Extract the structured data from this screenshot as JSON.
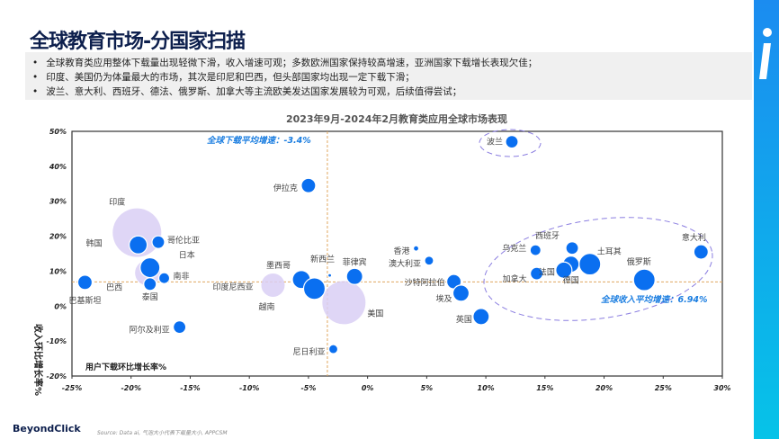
{
  "title": "全球教育市场-分国家扫描",
  "bullets": [
    "全球教育类应用整体下载量出现轻微下滑，收入增速可观；多数欧洲国家保持较高增速，亚洲国家下载增长表现欠佳；",
    "印度、美国仍为体量最大的市场，其次是印尼和巴西，但头部国家均出现一定下载下滑；",
    "波兰、意大利、西班牙、德法、俄罗斯、加拿大等主流欧美发达国家发展较为可观，后续值得尝试；"
  ],
  "brand": "BeyondClick",
  "source": "Source: Data ai, 气泡大小代表下载量大小, APPCSM",
  "colors": {
    "bubble": "#0a6ff0",
    "bubble_light": "#d9cff5",
    "accent": "#1a7de0",
    "refline": "#e0a860",
    "ellipse": "#8a7de0"
  },
  "chart_data": {
    "type": "scatter",
    "title": "2023年9月-2024年2月教育类应用全球市场表现",
    "xlabel": "用户下载环比增长率%",
    "ylabel": "收入环比增长率%",
    "xlim": [
      -25,
      30
    ],
    "ylim": [
      -20,
      50
    ],
    "xticks": [
      "-25%",
      "-20%",
      "-15%",
      "-10%",
      "-5%",
      "0%",
      "5%",
      "10%",
      "15%",
      "20%",
      "25%",
      "30%"
    ],
    "yticks": [
      "50%",
      "40%",
      "30%",
      "20%",
      "10%",
      "0%",
      "-10%",
      "-20%"
    ],
    "grid": false,
    "reference_lines": {
      "x": -3.4,
      "y": 6.94
    },
    "annotations": [
      "全球下载平均增速：-3.4%",
      "全球收入平均增速：6.94%"
    ],
    "points": [
      {
        "name": "印度",
        "x": -19.5,
        "y": 21,
        "size": 27,
        "light": true
      },
      {
        "name": "巴西",
        "x": -18.6,
        "y": 9.5,
        "size": 14,
        "light": true
      },
      {
        "name": "印度尼西亚",
        "x": -8,
        "y": 6,
        "size": 13,
        "light": true
      },
      {
        "name": "美国",
        "x": -2,
        "y": 1,
        "size": 24,
        "light": true
      },
      {
        "name": "波兰",
        "x": 12.2,
        "y": 47,
        "size": 7
      },
      {
        "name": "伊拉克",
        "x": -5,
        "y": 34.5,
        "size": 8
      },
      {
        "name": "韩国",
        "x": -19.4,
        "y": 17.5,
        "size": 10
      },
      {
        "name": "哥伦比亚",
        "x": -17.7,
        "y": 18.3,
        "size": 7
      },
      {
        "name": "日本",
        "x": -18.4,
        "y": 11,
        "size": 11
      },
      {
        "name": "南非",
        "x": -17.2,
        "y": 8,
        "size": 6
      },
      {
        "name": "泰国",
        "x": -18.4,
        "y": 6.3,
        "size": 7
      },
      {
        "name": "巴基斯坦",
        "x": -23.9,
        "y": 6.8,
        "size": 8
      },
      {
        "name": "阿尔及利亚",
        "x": -15.9,
        "y": -6,
        "size": 7
      },
      {
        "name": "墨西哥",
        "x": -5.6,
        "y": 7.6,
        "size": 10
      },
      {
        "name": "越南",
        "x": -4.5,
        "y": 5,
        "size": 12
      },
      {
        "name": "新西兰",
        "x": -3.2,
        "y": 8.8,
        "size": 2
      },
      {
        "name": "菲律宾",
        "x": -1.1,
        "y": 8.5,
        "size": 9
      },
      {
        "name": "尼日利亚",
        "x": -2.9,
        "y": -12.3,
        "size": 5
      },
      {
        "name": "香港",
        "x": 4.1,
        "y": 16.5,
        "size": 3
      },
      {
        "name": "澳大利亚",
        "x": 5.2,
        "y": 13,
        "size": 5
      },
      {
        "name": "沙特阿拉伯",
        "x": 7.3,
        "y": 7,
        "size": 8
      },
      {
        "name": "埃及",
        "x": 7.9,
        "y": 3.7,
        "size": 9
      },
      {
        "name": "英国",
        "x": 9.6,
        "y": -3,
        "size": 9
      },
      {
        "name": "乌克兰",
        "x": 14.2,
        "y": 16,
        "size": 6
      },
      {
        "name": "加拿大",
        "x": 14.3,
        "y": 9.3,
        "size": 7
      },
      {
        "name": "西班牙",
        "x": 17.3,
        "y": 16.6,
        "size": 7
      },
      {
        "name": "德国",
        "x": 17.2,
        "y": 12,
        "size": 9
      },
      {
        "name": "法国",
        "x": 16.6,
        "y": 10.3,
        "size": 9
      },
      {
        "name": "土耳其",
        "x": 18.8,
        "y": 12,
        "size": 12
      },
      {
        "name": "俄罗斯",
        "x": 23.4,
        "y": 7.5,
        "size": 12
      },
      {
        "name": "意大利",
        "x": 28.2,
        "y": 15.5,
        "size": 8
      }
    ]
  }
}
